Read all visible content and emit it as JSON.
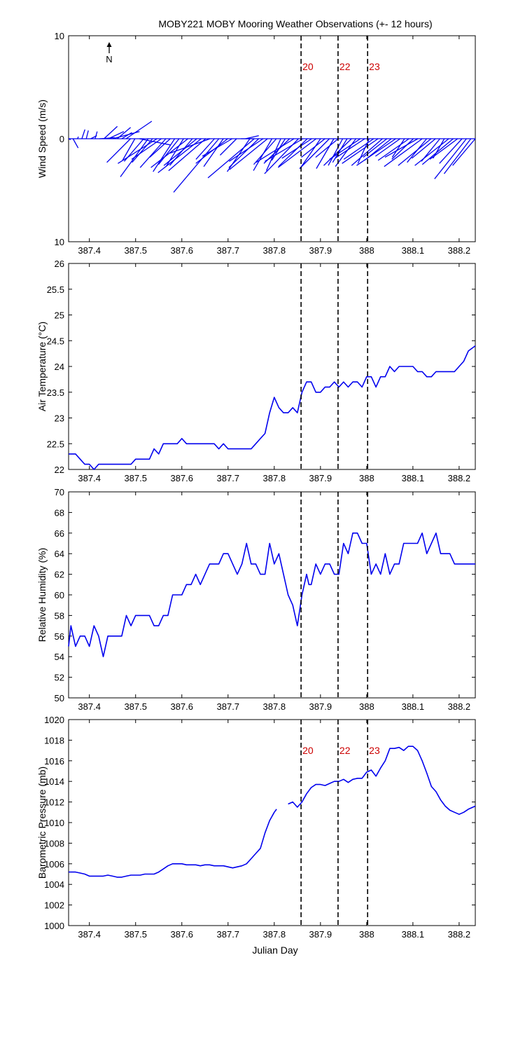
{
  "title": "MOBY221 MOBY Mooring Weather Observations (+- 12 hours)",
  "colors": {
    "series": "#0000ee",
    "marker_label": "#cc0000",
    "axis": "#000000"
  },
  "north_arrow_label": "N",
  "xlabel": "Julian Day",
  "xlim": [
    387.355,
    388.235
  ],
  "xticks": [
    387.4,
    387.5,
    387.6,
    387.7,
    387.8,
    387.9,
    388,
    388.1,
    388.2
  ],
  "xtick_labels": [
    "387.4",
    "387.5",
    "387.6",
    "387.7",
    "387.8",
    "387.9",
    "388",
    "388.1",
    "388.2"
  ],
  "markers": [
    {
      "x": 387.858,
      "label": "20"
    },
    {
      "x": 387.938,
      "label": "22"
    },
    {
      "x": 388.002,
      "label": "23"
    }
  ],
  "chart_data": [
    {
      "type": "line",
      "panel": "wind",
      "ylabel": "Wind Speed (m/s)",
      "ylim": [
        -10,
        10
      ],
      "yticks": [
        10,
        0,
        -10
      ],
      "ytick_labels": [
        "10",
        "0",
        "10"
      ],
      "show_markers": true,
      "show_marker_labels": true,
      "series": [
        {
          "vectors_u": [
            0.2,
            0.5,
            0.1,
            0.3,
            0.2,
            0.6,
            0.2,
            1.5,
            1.3,
            1.5,
            2.6,
            1.3,
            1.0,
            2.5,
            -2.3,
            -1.2,
            3.0,
            -1.9,
            -2.7,
            -2.0,
            -3.8,
            -2.9,
            -2.5,
            -2.0,
            -2.1,
            -2.0,
            -1.7,
            -3.6,
            -2.2,
            -3.2,
            -4.2,
            -3.6,
            -3.9,
            -1.8,
            -4.4,
            -1.9,
            -3.1,
            -2.9,
            -1.6,
            1.3,
            1.3,
            -2.2,
            -4.5,
            -2.9,
            -3.3,
            -3.7,
            -1.8,
            -2.2,
            -1.4,
            -1.3,
            -2.5,
            -3.7,
            -3.3,
            -3.7,
            -2.8,
            -2.9,
            -3.7,
            -2.0,
            -2.3,
            -2.9,
            -1.7,
            -2.2,
            -1.4,
            -1.4,
            -2.7,
            -2.0,
            -3.0,
            -2.9,
            -1.1,
            -2.9,
            -3.5,
            -3.0,
            -2.3,
            -2.6,
            -3.8,
            -2.4,
            -1.2,
            -3.0,
            -2.1,
            -3.2,
            -3.7,
            -1.9,
            -3.2,
            -2.3,
            -1.8,
            -1.1,
            -3.3,
            -3.0,
            -2.7,
            -2.2,
            -3.1,
            -2.6,
            -2.2
          ],
          "vectors_v": [
            -0.1,
            -0.9,
            0.2,
            0.9,
            0.8,
            0.3,
            0.7,
            0.1,
            1.2,
            0.7,
            0.7,
            1.1,
            0.6,
            1.7,
            -2.3,
            -2.1,
            -0.6,
            -2.2,
            -3.7,
            -2.3,
            -2.4,
            -2.0,
            -2.8,
            -1.8,
            -3.2,
            -2.5,
            -2.7,
            -2.8,
            -2.6,
            -2.6,
            -3.3,
            -3.1,
            -1.4,
            -2.0,
            -5.2,
            -2.7,
            -2.4,
            -1.7,
            -1.6,
            0.0,
            0.3,
            -3.2,
            -3.8,
            -2.8,
            -2.2,
            -3.0,
            -3.1,
            -2.5,
            -3.1,
            -2.1,
            -2.4,
            -2.3,
            -3.4,
            -2.2,
            -2.7,
            -1.9,
            -2.8,
            -2.9,
            -1.8,
            -2.9,
            -2.9,
            -1.8,
            -2.6,
            -2.3,
            -2.6,
            -2.7,
            -2.0,
            -1.9,
            -2.4,
            -2.0,
            -2.4,
            -2.6,
            -1.8,
            -2.1,
            -2.6,
            -1.7,
            -1.8,
            -2.1,
            -2.0,
            -1.8,
            -2.7,
            -2.3,
            -2.6,
            -1.9,
            -2.2,
            -1.9,
            -2.6,
            -2.5,
            -2.0,
            -2.4,
            -3.9,
            -3.4,
            -2.6
          ]
        }
      ]
    },
    {
      "type": "line",
      "panel": "air_temperature",
      "ylabel": "Air Temperature (°C)",
      "ylim": [
        22,
        26
      ],
      "yticks": [
        22,
        22.5,
        23,
        23.5,
        24,
        24.5,
        25,
        25.5,
        26
      ],
      "ytick_labels": [
        "22",
        "22.5",
        "23",
        "23.5",
        "24",
        "24.5",
        "25",
        "25.5",
        "26"
      ],
      "show_markers": true,
      "show_marker_labels": false,
      "series": [
        {
          "x": [
            387.355,
            387.37,
            387.38,
            387.39,
            387.4,
            387.41,
            387.42,
            387.43,
            387.44,
            387.45,
            387.46,
            387.47,
            387.48,
            387.49,
            387.5,
            387.51,
            387.52,
            387.53,
            387.54,
            387.55,
            387.56,
            387.57,
            387.58,
            387.59,
            387.6,
            387.61,
            387.62,
            387.63,
            387.64,
            387.65,
            387.66,
            387.67,
            387.68,
            387.69,
            387.7,
            387.71,
            387.72,
            387.73,
            387.74,
            387.75,
            387.76,
            387.77,
            387.78,
            387.79,
            387.8,
            387.81,
            387.82,
            387.83,
            387.84,
            387.85,
            387.86,
            387.87,
            387.88,
            387.89,
            387.9,
            387.91,
            387.92,
            387.93,
            387.94,
            387.95,
            387.96,
            387.97,
            387.98,
            387.99,
            388.0,
            388.01,
            388.02,
            388.03,
            388.04,
            388.05,
            388.06,
            388.07,
            388.08,
            388.09,
            388.1,
            388.11,
            388.12,
            388.13,
            388.14,
            388.15,
            388.16,
            388.17,
            388.18,
            388.19,
            388.2,
            388.21,
            388.22,
            388.235
          ],
          "values": [
            22.3,
            22.3,
            22.2,
            22.1,
            22.1,
            22.0,
            22.1,
            22.1,
            22.1,
            22.1,
            22.1,
            22.1,
            22.1,
            22.1,
            22.2,
            22.2,
            22.2,
            22.2,
            22.4,
            22.3,
            22.5,
            22.5,
            22.5,
            22.5,
            22.6,
            22.5,
            22.5,
            22.5,
            22.5,
            22.5,
            22.5,
            22.5,
            22.4,
            22.5,
            22.4,
            22.4,
            22.4,
            22.4,
            22.4,
            22.4,
            22.5,
            22.6,
            22.7,
            23.1,
            23.4,
            23.2,
            23.1,
            23.1,
            23.2,
            23.1,
            23.5,
            23.7,
            23.7,
            23.5,
            23.5,
            23.6,
            23.6,
            23.7,
            23.6,
            23.7,
            23.6,
            23.7,
            23.7,
            23.6,
            23.8,
            23.8,
            23.6,
            23.8,
            23.8,
            24.0,
            23.9,
            24.0,
            24.0,
            24.0,
            24.0,
            23.9,
            23.9,
            23.8,
            23.8,
            23.9,
            23.9,
            23.9,
            23.9,
            23.9,
            24.0,
            24.1,
            24.3,
            24.4
          ]
        }
      ]
    },
    {
      "type": "line",
      "panel": "relative_humidity",
      "ylabel": "Relative Humidity (%)",
      "ylim": [
        50,
        70
      ],
      "yticks": [
        50,
        52,
        54,
        56,
        58,
        60,
        62,
        64,
        66,
        68,
        70
      ],
      "ytick_labels": [
        "50",
        "52",
        "54",
        "56",
        "58",
        "60",
        "62",
        "64",
        "66",
        "68",
        "70"
      ],
      "show_markers": true,
      "show_marker_labels": false,
      "series": [
        {
          "x": [
            387.355,
            387.36,
            387.37,
            387.38,
            387.39,
            387.4,
            387.41,
            387.42,
            387.43,
            387.44,
            387.45,
            387.46,
            387.47,
            387.48,
            387.49,
            387.5,
            387.51,
            387.52,
            387.53,
            387.54,
            387.55,
            387.56,
            387.57,
            387.58,
            387.59,
            387.6,
            387.61,
            387.62,
            387.63,
            387.64,
            387.65,
            387.66,
            387.67,
            387.68,
            387.69,
            387.7,
            387.71,
            387.72,
            387.73,
            387.74,
            387.75,
            387.76,
            387.77,
            387.78,
            387.79,
            387.8,
            387.81,
            387.82,
            387.83,
            387.84,
            387.85,
            387.86,
            387.87,
            387.875,
            387.88,
            387.89,
            387.9,
            387.91,
            387.92,
            387.93,
            387.94,
            387.95,
            387.96,
            387.97,
            387.98,
            387.99,
            388.0,
            388.01,
            388.02,
            388.03,
            388.04,
            388.05,
            388.06,
            388.07,
            388.08,
            388.09,
            388.1,
            388.11,
            388.12,
            388.13,
            388.14,
            388.15,
            388.16,
            388.17,
            388.18,
            388.19,
            388.2,
            388.21,
            388.22,
            388.235
          ],
          "values": [
            55,
            57,
            55,
            56,
            56,
            55,
            57,
            56,
            54,
            56,
            56,
            56,
            56,
            58,
            57,
            58,
            58,
            58,
            58,
            57,
            57,
            58,
            58,
            60,
            60,
            60,
            61,
            61,
            62,
            61,
            62,
            63,
            63,
            63,
            64,
            64,
            63,
            62,
            63,
            65,
            63,
            63,
            62,
            62,
            65,
            63,
            64,
            62,
            60,
            59,
            57,
            60,
            62,
            61,
            61,
            63,
            62,
            63,
            63,
            62,
            62,
            65,
            64,
            66,
            66,
            65,
            65,
            62,
            63,
            62,
            64,
            62,
            63,
            63,
            65,
            65,
            65,
            65,
            66,
            64,
            65,
            66,
            64,
            64,
            64,
            63,
            63,
            63,
            63,
            63
          ]
        }
      ]
    },
    {
      "type": "line",
      "panel": "barometric_pressure",
      "ylabel": "Barometric Pressure (mb)",
      "ylim": [
        1000,
        1020
      ],
      "yticks": [
        1000,
        1002,
        1004,
        1006,
        1008,
        1010,
        1012,
        1014,
        1016,
        1018,
        1020
      ],
      "ytick_labels": [
        "1000",
        "1002",
        "1004",
        "1006",
        "1008",
        "1010",
        "1012",
        "1014",
        "1016",
        "1018",
        "1020"
      ],
      "show_markers": true,
      "show_marker_labels": true,
      "series": [
        {
          "x": [
            387.355,
            387.37,
            387.38,
            387.39,
            387.4,
            387.41,
            387.42,
            387.43,
            387.44,
            387.45,
            387.46,
            387.47,
            387.48,
            387.49,
            387.5,
            387.51,
            387.52,
            387.53,
            387.54,
            387.55,
            387.56,
            387.57,
            387.58,
            387.59,
            387.6,
            387.61,
            387.62,
            387.63,
            387.64,
            387.65,
            387.66,
            387.67,
            387.68,
            387.69,
            387.7,
            387.71,
            387.72,
            387.73,
            387.74,
            387.75,
            387.76,
            387.77,
            387.78,
            387.79,
            387.8,
            387.805
          ],
          "values": [
            1005.2,
            1005.2,
            1005.1,
            1005.0,
            1004.8,
            1004.8,
            1004.8,
            1004.8,
            1004.9,
            1004.8,
            1004.7,
            1004.7,
            1004.8,
            1004.9,
            1004.9,
            1004.9,
            1005.0,
            1005.0,
            1005.0,
            1005.2,
            1005.5,
            1005.8,
            1006.0,
            1006.0,
            1006.0,
            1005.9,
            1005.9,
            1005.9,
            1005.8,
            1005.9,
            1005.9,
            1005.8,
            1005.8,
            1005.8,
            1005.7,
            1005.6,
            1005.7,
            1005.8,
            1006.0,
            1006.5,
            1007.0,
            1007.5,
            1009.0,
            1010.2,
            1011.0,
            1011.3
          ]
        },
        {
          "x": [
            387.83,
            387.84,
            387.85,
            387.86,
            387.87,
            387.88,
            387.89,
            387.9,
            387.91,
            387.92,
            387.93,
            387.94,
            387.95,
            387.96,
            387.97,
            387.98,
            387.99,
            388.0,
            388.01,
            388.02,
            388.03,
            388.04,
            388.05,
            388.06,
            388.07,
            388.08,
            388.09,
            388.1,
            388.11,
            388.12,
            388.13,
            388.14,
            388.15,
            388.16,
            388.17,
            388.18,
            388.19,
            388.2,
            388.21,
            388.22,
            388.235
          ],
          "values": [
            1011.8,
            1012.0,
            1011.5,
            1012.0,
            1012.8,
            1013.4,
            1013.7,
            1013.7,
            1013.6,
            1013.8,
            1014.0,
            1014.0,
            1014.2,
            1013.9,
            1014.2,
            1014.3,
            1014.3,
            1014.9,
            1015.1,
            1014.5,
            1015.3,
            1016.0,
            1017.2,
            1017.2,
            1017.3,
            1017.0,
            1017.4,
            1017.4,
            1017.0,
            1016.0,
            1014.8,
            1013.5,
            1013.0,
            1012.2,
            1011.6,
            1011.2,
            1011.0,
            1010.8,
            1011.0,
            1011.3,
            1011.6
          ]
        }
      ]
    }
  ]
}
